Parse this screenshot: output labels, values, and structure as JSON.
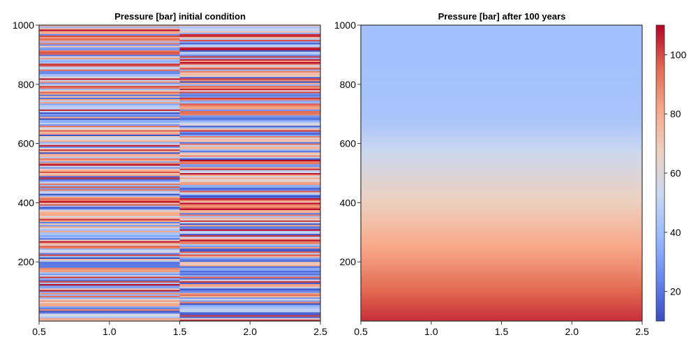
{
  "chart_data": [
    {
      "type": "heatmap",
      "title": "Pressure [bar] initial condition",
      "xlabel": "",
      "ylabel": "",
      "xlim": [
        0.5,
        2.5
      ],
      "ylim": [
        0,
        1000
      ],
      "x_ticks": [
        "0.5",
        "1.0",
        "1.5",
        "2.0",
        "2.5"
      ],
      "y_ticks": [
        "200",
        "400",
        "600",
        "800",
        "1000"
      ],
      "columns": [
        {
          "x_range": [
            0.5,
            1.5
          ],
          "description": "horizontal random bands, values roughly 10-110"
        },
        {
          "x_range": [
            1.5,
            2.5
          ],
          "description": "horizontal random bands, values roughly 10-110"
        }
      ],
      "value_range": [
        10,
        110
      ],
      "grid": false
    },
    {
      "type": "heatmap",
      "title": "Pressure [bar] after 100 years",
      "xlabel": "",
      "ylabel": "",
      "xlim": [
        0.5,
        2.5
      ],
      "ylim": [
        0,
        1000
      ],
      "x_ticks": [
        "0.5",
        "1.0",
        "1.5",
        "2.0",
        "2.5"
      ],
      "y_ticks": [
        "200",
        "400",
        "600",
        "800",
        "1000"
      ],
      "profile": {
        "depth": [
          0,
          100,
          200,
          300,
          400,
          500,
          600,
          650,
          700,
          800,
          900,
          1000
        ],
        "pressure": [
          104,
          96,
          86,
          77,
          68,
          60,
          51,
          46,
          43,
          42,
          41,
          41
        ]
      },
      "grid": false
    }
  ],
  "colorbar": {
    "ticks": [
      "20",
      "40",
      "60",
      "80",
      "100"
    ],
    "range": [
      10,
      110
    ],
    "colormap": [
      "#3b4cc0",
      "#6788ee",
      "#9abbff",
      "#c9d7f0",
      "#edd1c2",
      "#f7a889",
      "#e26952",
      "#b40426"
    ]
  }
}
